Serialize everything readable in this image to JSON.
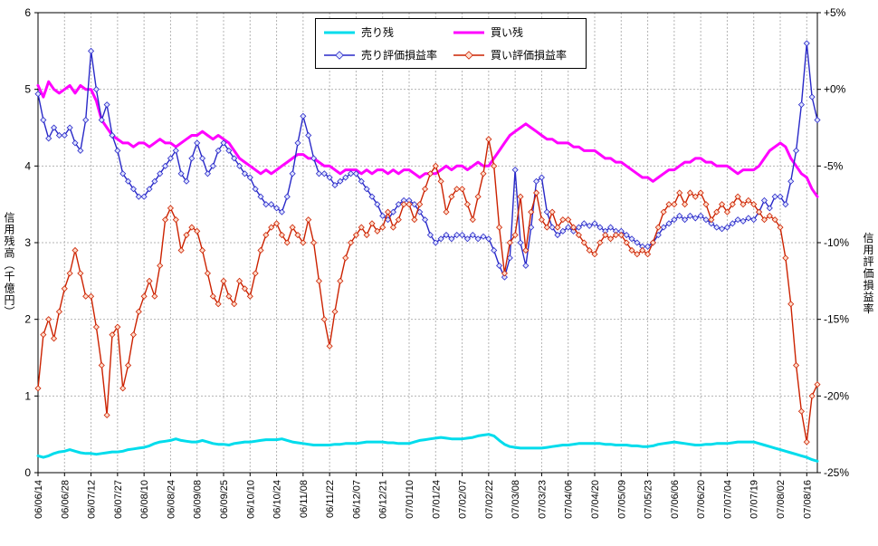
{
  "chart_data": {
    "type": "line",
    "title": "",
    "left_axis": {
      "label": "信用残高（千億円）",
      "min": 0,
      "max": 6,
      "tick_step": 1
    },
    "right_axis": {
      "label": "信用評価損益率",
      "min": -25,
      "max": 5,
      "tick_step": 5,
      "tick_labels": [
        "-25%",
        "-20%",
        "-15%",
        "-10%",
        "-5%",
        "+0%",
        "+5%"
      ]
    },
    "grid_color": "#b4b4b4",
    "points_per_tick": 5,
    "x_tick_labels": [
      "06/06/14",
      "06/06/28",
      "06/07/12",
      "06/07/27",
      "06/08/10",
      "06/08/24",
      "06/09/08",
      "06/09/25",
      "06/10/10",
      "06/10/24",
      "06/11/08",
      "06/11/22",
      "06/12/07",
      "06/12/21",
      "07/01/10",
      "07/01/24",
      "07/02/07",
      "07/02/22",
      "07/03/08",
      "07/03/23",
      "07/04/06",
      "07/04/20",
      "07/05/09",
      "07/05/23",
      "07/06/06",
      "07/06/20",
      "07/07/04",
      "07/07/19",
      "07/08/02",
      "07/08/16"
    ],
    "series": [
      {
        "name": "売り残",
        "axis": "left",
        "color": "#00dcEC",
        "width": 3,
        "marker": false,
        "values": [
          0.22,
          0.2,
          0.22,
          0.25,
          0.27,
          0.28,
          0.3,
          0.28,
          0.26,
          0.25,
          0.25,
          0.24,
          0.25,
          0.26,
          0.27,
          0.27,
          0.28,
          0.3,
          0.31,
          0.32,
          0.33,
          0.35,
          0.38,
          0.4,
          0.41,
          0.42,
          0.44,
          0.42,
          0.41,
          0.4,
          0.4,
          0.42,
          0.4,
          0.38,
          0.37,
          0.37,
          0.36,
          0.38,
          0.39,
          0.4,
          0.4,
          0.41,
          0.42,
          0.43,
          0.43,
          0.43,
          0.44,
          0.42,
          0.4,
          0.39,
          0.38,
          0.37,
          0.36,
          0.36,
          0.36,
          0.36,
          0.37,
          0.37,
          0.38,
          0.38,
          0.38,
          0.39,
          0.4,
          0.4,
          0.4,
          0.4,
          0.39,
          0.39,
          0.38,
          0.38,
          0.38,
          0.4,
          0.42,
          0.43,
          0.44,
          0.45,
          0.46,
          0.45,
          0.44,
          0.44,
          0.44,
          0.45,
          0.46,
          0.48,
          0.49,
          0.5,
          0.48,
          0.42,
          0.37,
          0.34,
          0.33,
          0.32,
          0.32,
          0.32,
          0.32,
          0.32,
          0.33,
          0.34,
          0.35,
          0.36,
          0.36,
          0.37,
          0.38,
          0.38,
          0.38,
          0.38,
          0.38,
          0.37,
          0.37,
          0.36,
          0.36,
          0.36,
          0.35,
          0.35,
          0.34,
          0.34,
          0.35,
          0.37,
          0.38,
          0.39,
          0.4,
          0.39,
          0.38,
          0.37,
          0.36,
          0.36,
          0.37,
          0.37,
          0.38,
          0.38,
          0.38,
          0.39,
          0.4,
          0.4,
          0.4,
          0.4,
          0.38,
          0.36,
          0.34,
          0.32,
          0.3,
          0.28,
          0.26,
          0.24,
          0.22,
          0.2,
          0.17,
          0.15
        ]
      },
      {
        "name": "買い残",
        "axis": "left",
        "color": "#ff00ff",
        "width": 3,
        "marker": false,
        "values": [
          5.05,
          4.9,
          5.1,
          5.0,
          4.95,
          5.0,
          5.05,
          4.95,
          5.05,
          5.0,
          5.0,
          4.85,
          4.6,
          4.5,
          4.4,
          4.35,
          4.3,
          4.3,
          4.25,
          4.3,
          4.3,
          4.25,
          4.3,
          4.35,
          4.3,
          4.3,
          4.25,
          4.3,
          4.35,
          4.4,
          4.4,
          4.45,
          4.4,
          4.35,
          4.4,
          4.35,
          4.3,
          4.2,
          4.1,
          4.05,
          4.0,
          3.95,
          3.9,
          3.95,
          3.9,
          3.95,
          4.0,
          4.05,
          4.1,
          4.15,
          4.15,
          4.1,
          4.1,
          4.05,
          4.0,
          4.0,
          3.95,
          3.9,
          3.95,
          3.95,
          3.95,
          3.9,
          3.95,
          3.9,
          3.95,
          3.95,
          3.9,
          3.95,
          3.9,
          3.95,
          3.95,
          3.9,
          3.85,
          3.9,
          3.9,
          3.9,
          3.95,
          4.0,
          3.95,
          4.0,
          4.0,
          3.95,
          4.0,
          4.05,
          4.0,
          4.0,
          4.1,
          4.2,
          4.3,
          4.4,
          4.45,
          4.5,
          4.55,
          4.5,
          4.45,
          4.4,
          4.35,
          4.35,
          4.3,
          4.3,
          4.3,
          4.25,
          4.25,
          4.2,
          4.2,
          4.2,
          4.15,
          4.1,
          4.1,
          4.05,
          4.05,
          4.0,
          3.95,
          3.9,
          3.85,
          3.85,
          3.8,
          3.85,
          3.9,
          3.95,
          3.95,
          4.0,
          4.05,
          4.05,
          4.1,
          4.1,
          4.05,
          4.05,
          4.0,
          4.0,
          4.0,
          3.95,
          3.9,
          3.95,
          3.95,
          3.95,
          4.0,
          4.1,
          4.2,
          4.25,
          4.3,
          4.25,
          4.1,
          4.0,
          3.9,
          3.85,
          3.7,
          3.6
        ]
      },
      {
        "name": "売り評価損益率",
        "axis": "right",
        "color": "#2929c8",
        "width": 1.4,
        "marker": true,
        "marker_fill": "#dfe4ff",
        "values": [
          -0.3,
          -2.0,
          -3.2,
          -2.5,
          -3.0,
          -3.0,
          -2.5,
          -3.5,
          -4.0,
          -2.0,
          2.5,
          0.0,
          -2.0,
          -1.0,
          -3.0,
          -4.0,
          -5.5,
          -6.0,
          -6.5,
          -7.0,
          -7.0,
          -6.5,
          -6.0,
          -5.5,
          -5.0,
          -4.5,
          -4.0,
          -5.5,
          -6.0,
          -4.5,
          -3.5,
          -4.5,
          -5.5,
          -5.0,
          -4.0,
          -3.5,
          -4.0,
          -4.5,
          -5.0,
          -5.5,
          -5.75,
          -6.5,
          -7.0,
          -7.5,
          -7.5,
          -7.75,
          -8.0,
          -7.0,
          -5.5,
          -3.5,
          -1.75,
          -3.0,
          -4.5,
          -5.5,
          -5.5,
          -5.75,
          -6.25,
          -6.0,
          -5.75,
          -5.5,
          -5.5,
          -6.0,
          -6.5,
          -7.0,
          -7.5,
          -8.25,
          -8.5,
          -8.0,
          -7.5,
          -7.25,
          -7.25,
          -7.5,
          -8.0,
          -8.5,
          -9.5,
          -10.0,
          -9.75,
          -9.5,
          -9.75,
          -9.5,
          -9.5,
          -9.75,
          -9.5,
          -9.75,
          -9.6,
          -9.75,
          -10.5,
          -11.5,
          -12.25,
          -11.0,
          -5.25,
          -10.0,
          -11.5,
          -9.0,
          -6.0,
          -5.75,
          -8.0,
          -9.0,
          -9.5,
          -9.25,
          -9.0,
          -9.25,
          -9.0,
          -8.75,
          -8.9,
          -8.75,
          -9.0,
          -9.25,
          -9.0,
          -9.25,
          -9.25,
          -9.5,
          -9.75,
          -10.0,
          -10.25,
          -10.25,
          -10.0,
          -9.5,
          -9.0,
          -8.75,
          -8.5,
          -8.25,
          -8.5,
          -8.25,
          -8.4,
          -8.25,
          -8.5,
          -8.75,
          -9.0,
          -9.1,
          -9.0,
          -8.75,
          -8.5,
          -8.6,
          -8.4,
          -8.5,
          -8.0,
          -7.25,
          -7.75,
          -7.0,
          -7.0,
          -7.5,
          -6.0,
          -4.0,
          -1.0,
          3.0,
          -0.5,
          -2.0
        ]
      },
      {
        "name": "買い評価損益率",
        "axis": "right",
        "color": "#cc2200",
        "width": 1.4,
        "marker": true,
        "marker_fill": "#ffddcc",
        "values": [
          -19.5,
          -16.0,
          -15.0,
          -16.25,
          -14.5,
          -13.0,
          -12.0,
          -10.5,
          -12.0,
          -13.5,
          -13.5,
          -15.5,
          -18.0,
          -21.25,
          -16.0,
          -15.5,
          -19.5,
          -18.0,
          -16.0,
          -14.5,
          -13.5,
          -12.5,
          -13.5,
          -11.5,
          -8.5,
          -7.75,
          -8.5,
          -10.5,
          -9.5,
          -9.0,
          -9.25,
          -10.5,
          -12.0,
          -13.5,
          -14.0,
          -12.5,
          -13.5,
          -14.0,
          -12.5,
          -13.0,
          -13.5,
          -12.0,
          -10.5,
          -9.5,
          -9.0,
          -8.75,
          -9.5,
          -10.0,
          -9.0,
          -9.5,
          -10.0,
          -8.5,
          -10.0,
          -12.5,
          -15.0,
          -16.75,
          -14.5,
          -12.5,
          -11.0,
          -10.0,
          -9.5,
          -9.0,
          -9.5,
          -8.75,
          -9.25,
          -9.0,
          -8.0,
          -9.0,
          -8.5,
          -7.5,
          -7.5,
          -8.5,
          -7.5,
          -6.5,
          -5.5,
          -5.0,
          -6.0,
          -8.0,
          -7.0,
          -6.5,
          -6.5,
          -7.5,
          -8.5,
          -7.0,
          -5.5,
          -3.25,
          -5.0,
          -9.0,
          -12.0,
          -10.0,
          -9.5,
          -7.0,
          -10.5,
          -8.0,
          -6.75,
          -8.5,
          -9.0,
          -8.0,
          -9.0,
          -8.5,
          -8.5,
          -9.0,
          -9.5,
          -10.0,
          -10.5,
          -10.75,
          -10.0,
          -9.5,
          -9.75,
          -9.5,
          -9.5,
          -10.0,
          -10.5,
          -10.75,
          -10.5,
          -10.75,
          -10.0,
          -9.0,
          -8.0,
          -7.5,
          -7.5,
          -6.75,
          -7.5,
          -6.75,
          -7.0,
          -6.75,
          -7.5,
          -8.5,
          -8.0,
          -7.5,
          -8.0,
          -7.5,
          -7.0,
          -7.5,
          -7.25,
          -7.5,
          -8.0,
          -8.5,
          -8.25,
          -8.5,
          -9.0,
          -11.0,
          -14.0,
          -18.0,
          -21.0,
          -23.0,
          -20.0,
          -19.25
        ]
      }
    ]
  }
}
